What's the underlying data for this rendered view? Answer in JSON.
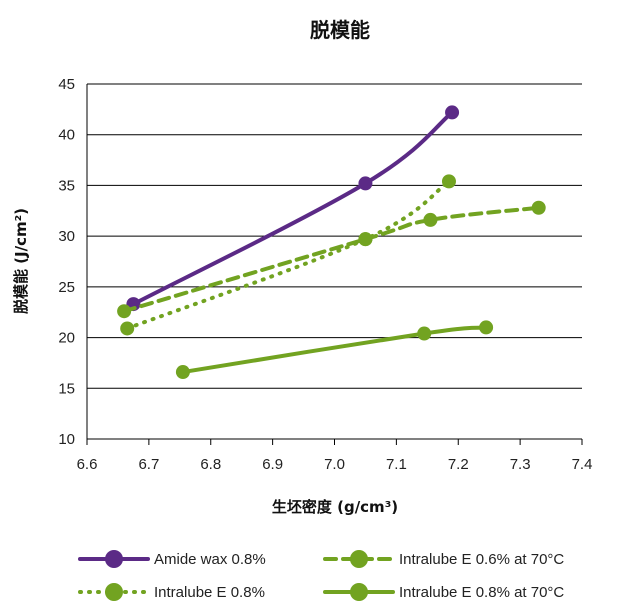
{
  "chart_data": {
    "type": "line",
    "title": "脱模能",
    "xlabel": "生坯密度 (g/cm³)",
    "ylabel": "脱模能 (J/cm²)",
    "xlim": [
      6.6,
      7.4
    ],
    "ylim": [
      10,
      45
    ],
    "x_ticks": [
      "6.6",
      "6.7",
      "6.8",
      "6.9",
      "7.0",
      "7.1",
      "7.2",
      "7.3",
      "7.4"
    ],
    "y_ticks": [
      "10",
      "15",
      "20",
      "25",
      "30",
      "35",
      "40",
      "45"
    ],
    "grid": "horizontal",
    "legend_position": "bottom",
    "series": [
      {
        "name": "Amide wax 0.8%",
        "color": "#5b2a86",
        "line_style": "solid",
        "points": [
          [
            6.675,
            23.3
          ],
          [
            7.05,
            35.2
          ],
          [
            7.19,
            42.2
          ]
        ]
      },
      {
        "name": "Intralube E 0.6% at 70°C",
        "color": "#72a321",
        "line_style": "dashed",
        "points": [
          [
            6.66,
            22.6
          ],
          [
            7.05,
            29.7
          ],
          [
            7.155,
            31.6
          ],
          [
            7.33,
            32.8
          ]
        ]
      },
      {
        "name": "Intralube E 0.8%",
        "color": "#72a321",
        "line_style": "dotted",
        "points": [
          [
            6.665,
            20.9
          ],
          [
            7.05,
            29.7
          ],
          [
            7.185,
            35.4
          ]
        ]
      },
      {
        "name": "Intralube E 0.8% at 70°C",
        "color": "#72a321",
        "line_style": "solid",
        "points": [
          [
            6.755,
            16.6
          ],
          [
            7.145,
            20.4
          ],
          [
            7.245,
            21.0
          ]
        ]
      }
    ]
  }
}
